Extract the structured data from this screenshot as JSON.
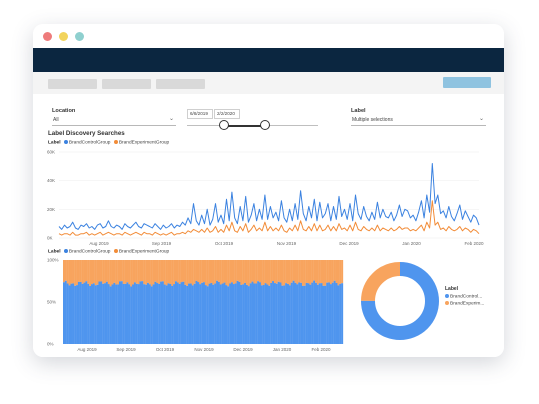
{
  "window": {
    "dots": [
      "#ee7b7b",
      "#f2d45c",
      "#8fd0cf"
    ]
  },
  "header": {
    "color": "#0b2640"
  },
  "toolbar": {
    "buttons": [
      "",
      "",
      ""
    ]
  },
  "filters": {
    "location": {
      "label": "Location",
      "value": "All"
    },
    "dates": {
      "start": "6/8/2019",
      "end": "2/2/2020"
    },
    "label": {
      "label": "Label",
      "value": "Multiple selections"
    }
  },
  "line_chart": {
    "title": "Label Discovery Searches",
    "legend_title": "Label",
    "series_names": [
      "BrandControlGroup",
      "BrandExperimentGroup"
    ],
    "colors": {
      "control": "#3b82e0",
      "experiment": "#f28c38"
    }
  },
  "bar_chart": {
    "legend_title": "Label",
    "series_names": [
      "BrandControlGroup",
      "BrandExperimentGroup"
    ]
  },
  "donut": {
    "legend_title": "Label",
    "items": [
      "BrandControl...",
      "BrandExperim..."
    ]
  },
  "chart_data": [
    {
      "type": "line",
      "title": "Label Discovery Searches",
      "ylim": [
        0,
        60000
      ],
      "y_ticks": [
        "0K",
        "20K",
        "40K",
        "60K"
      ],
      "x_ticks": [
        "Aug 2019",
        "Sep 2019",
        "Oct 2019",
        "Nov 2019",
        "Dec 2019",
        "Jan 2020",
        "Feb 2020"
      ],
      "series": [
        {
          "name": "BrandControlGroup",
          "color": "#3b82e0",
          "values": [
            8,
            6,
            9,
            7,
            8,
            11,
            7,
            6,
            9,
            8,
            10,
            7,
            8,
            6,
            9,
            10,
            7,
            8,
            12,
            8,
            7,
            9,
            8,
            6,
            10,
            8,
            7,
            9,
            11,
            8,
            7,
            10,
            9,
            8,
            7,
            10,
            8,
            6,
            9,
            7,
            8,
            10,
            7,
            9,
            8,
            11,
            9,
            14,
            10,
            24,
            12,
            9,
            16,
            10,
            20,
            9,
            13,
            24,
            11,
            16,
            10,
            27,
            12,
            32,
            14,
            10,
            22,
            12,
            29,
            11,
            16,
            24,
            12,
            20,
            13,
            30,
            13,
            22,
            14,
            18,
            12,
            26,
            14,
            11,
            20,
            12,
            24,
            13,
            33,
            17,
            12,
            22,
            14,
            27,
            12,
            25,
            14,
            17,
            24,
            12,
            22,
            13,
            29,
            15,
            20,
            13,
            24,
            12,
            30,
            17,
            13,
            22,
            15,
            12,
            18,
            13,
            25,
            14,
            20,
            15,
            14,
            18,
            12,
            16,
            23,
            15,
            20,
            19,
            14,
            16,
            12,
            18,
            26,
            14,
            30,
            18,
            52,
            24,
            30,
            17,
            19,
            14,
            22,
            15,
            12,
            17,
            23,
            13,
            19,
            15,
            11,
            16,
            14,
            9
          ]
        },
        {
          "name": "BrandExperimentGroup",
          "color": "#f28c38",
          "values": [
            3,
            2,
            3,
            3,
            2,
            4,
            2,
            2,
            3,
            3,
            4,
            2,
            3,
            2,
            3,
            4,
            2,
            3,
            4,
            3,
            2,
            3,
            3,
            2,
            4,
            3,
            2,
            3,
            4,
            3,
            2,
            4,
            3,
            3,
            2,
            4,
            3,
            2,
            3,
            2,
            3,
            4,
            2,
            3,
            3,
            4,
            3,
            5,
            4,
            6,
            5,
            4,
            6,
            4,
            7,
            4,
            5,
            8,
            4,
            6,
            4,
            9,
            5,
            11,
            5,
            4,
            8,
            5,
            10,
            4,
            6,
            9,
            5,
            7,
            5,
            11,
            5,
            8,
            5,
            7,
            5,
            9,
            5,
            4,
            7,
            5,
            9,
            5,
            12,
            6,
            5,
            8,
            5,
            10,
            5,
            9,
            5,
            6,
            9,
            5,
            8,
            5,
            10,
            6,
            7,
            5,
            9,
            5,
            11,
            6,
            5,
            8,
            6,
            5,
            7,
            5,
            9,
            5,
            7,
            6,
            5,
            7,
            5,
            6,
            8,
            6,
            7,
            7,
            5,
            6,
            5,
            7,
            9,
            5,
            11,
            7,
            26,
            9,
            11,
            6,
            7,
            5,
            8,
            6,
            5,
            6,
            8,
            5,
            7,
            6,
            4,
            6,
            5,
            3
          ]
        }
      ]
    },
    {
      "type": "bar",
      "stacked_percent": true,
      "y_ticks": [
        "0%",
        "50%",
        "100%"
      ],
      "x_ticks": [
        "Aug 2019",
        "Sep 2019",
        "Oct 2019",
        "Nov 2019",
        "Dec 2019",
        "Jan 2020",
        "Feb 2020"
      ],
      "series": [
        {
          "name": "BrandControlGroup",
          "color": "#4f95ee",
          "share_approx": 0.72
        },
        {
          "name": "BrandExperimentGroup",
          "color": "#f8a45e",
          "share_approx": 0.28
        }
      ]
    },
    {
      "type": "pie",
      "donut": true,
      "slices": [
        {
          "name": "BrandControlGroup",
          "value": 75,
          "color": "#4f95ee"
        },
        {
          "name": "BrandExperimentGroup",
          "value": 25,
          "color": "#f8a45e"
        }
      ]
    }
  ]
}
